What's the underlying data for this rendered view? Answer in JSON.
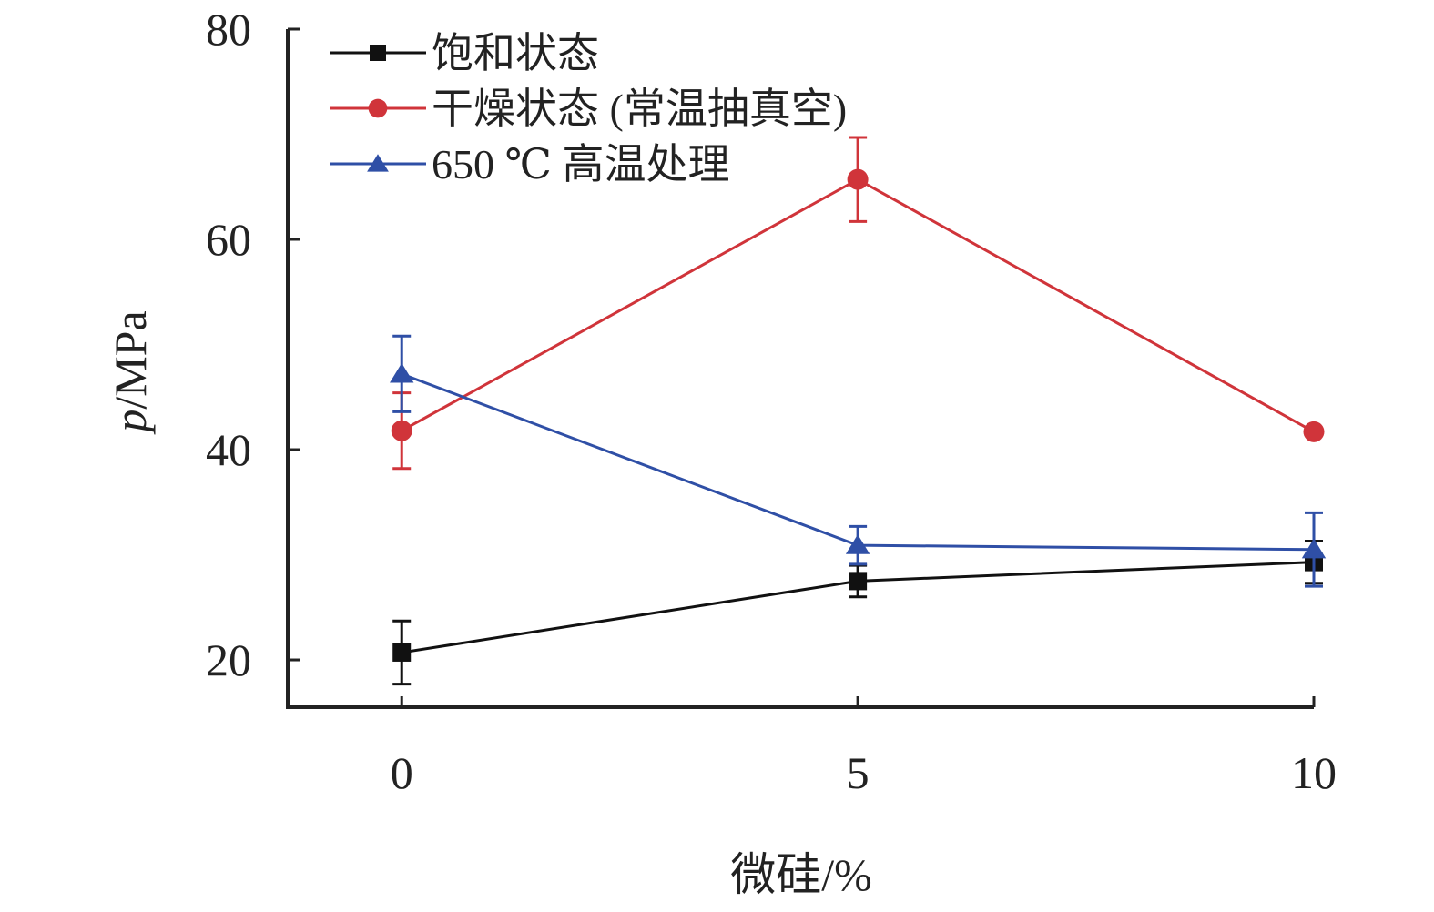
{
  "chart_data": {
    "type": "line",
    "title": "",
    "xlabel": "微硅/%",
    "ylabel_italic": "p",
    "ylabel_unit": "/MPa",
    "x": [
      0,
      5,
      10
    ],
    "x_tick_labels": [
      "0",
      "5",
      "10"
    ],
    "xlim": [
      -1.25,
      10
    ],
    "ylim": [
      15.5,
      80
    ],
    "y_ticks": [
      20,
      40,
      60,
      80
    ],
    "y_tick_labels": [
      "20",
      "40",
      "60",
      "80"
    ],
    "grid": false,
    "legend_position": "top-left",
    "series": [
      {
        "name": "饱和状态",
        "marker": "square",
        "color": "#111111",
        "values": [
          20.7,
          27.5,
          29.3
        ],
        "err_low": [
          3.0,
          1.5,
          2.0
        ],
        "err_high": [
          3.0,
          1.5,
          2.0
        ]
      },
      {
        "name": "干燥状态 (常温抽真空)",
        "marker": "circle",
        "color": "#d0343a",
        "values": [
          41.8,
          65.7,
          41.7
        ],
        "err_low": [
          3.6,
          4.0,
          0.0
        ],
        "err_high": [
          3.6,
          4.0,
          0.0
        ]
      },
      {
        "name": "650 ℃ 高温处理",
        "marker": "triangle",
        "color": "#2f4fa6",
        "values": [
          47.2,
          30.9,
          30.5
        ],
        "err_low": [
          3.6,
          1.8,
          3.5
        ],
        "err_high": [
          3.6,
          1.8,
          3.5
        ]
      }
    ]
  }
}
